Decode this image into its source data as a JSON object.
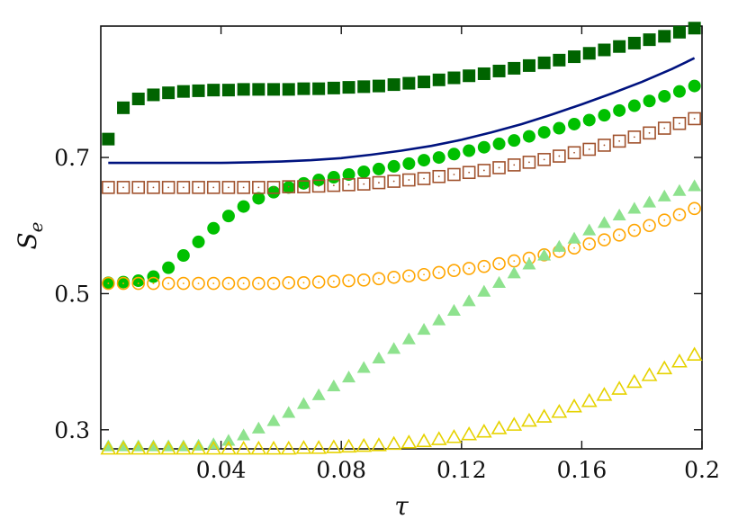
{
  "chart_data": {
    "type": "scatter",
    "title": "",
    "xlabel": "τ",
    "ylabel": "S",
    "ylabel_subscript": "e",
    "xlim": [
      0.0,
      0.2
    ],
    "ylim": [
      0.272,
      0.893
    ],
    "grid": false,
    "legend": "none",
    "x_ticks": [
      {
        "value": 0.04,
        "label": "0.04"
      },
      {
        "value": 0.08,
        "label": "0.08"
      },
      {
        "value": 0.12,
        "label": "0.12"
      },
      {
        "value": 0.16,
        "label": "0.16"
      },
      {
        "value": 0.2,
        "label": "0.2"
      }
    ],
    "y_ticks": [
      {
        "value": 0.3,
        "label": "0.3"
      },
      {
        "value": 0.5,
        "label": "0.5"
      },
      {
        "value": 0.7,
        "label": "0.7"
      }
    ],
    "series": [
      {
        "name": "dark-green-filled-squares",
        "marker": "square-filled",
        "color": "#006400",
        "x": [
          0.0025,
          0.0075,
          0.0125,
          0.0175,
          0.0225,
          0.0275,
          0.0325,
          0.0375,
          0.0425,
          0.0475,
          0.0525,
          0.0575,
          0.0625,
          0.0675,
          0.0725,
          0.0775,
          0.0825,
          0.0875,
          0.0925,
          0.0975,
          0.1025,
          0.1075,
          0.1125,
          0.1175,
          0.1225,
          0.1275,
          0.1325,
          0.1375,
          0.1425,
          0.1475,
          0.1525,
          0.1575,
          0.1625,
          0.1675,
          0.1725,
          0.1775,
          0.1825,
          0.1875,
          0.1925,
          0.1975
        ],
        "y": [
          0.727,
          0.773,
          0.786,
          0.792,
          0.795,
          0.797,
          0.798,
          0.799,
          0.799,
          0.8,
          0.8,
          0.8,
          0.8,
          0.801,
          0.801,
          0.802,
          0.803,
          0.804,
          0.805,
          0.807,
          0.809,
          0.811,
          0.814,
          0.817,
          0.82,
          0.823,
          0.827,
          0.831,
          0.835,
          0.839,
          0.843,
          0.848,
          0.853,
          0.858,
          0.863,
          0.868,
          0.873,
          0.878,
          0.884,
          0.89
        ]
      },
      {
        "name": "navy-line",
        "marker": "line",
        "color": "#00137f",
        "x": [
          0.0025,
          0.01,
          0.02,
          0.03,
          0.04,
          0.05,
          0.06,
          0.07,
          0.08,
          0.09,
          0.1,
          0.11,
          0.12,
          0.13,
          0.14,
          0.15,
          0.16,
          0.17,
          0.18,
          0.19,
          0.1975
        ],
        "y": [
          0.692,
          0.692,
          0.692,
          0.692,
          0.692,
          0.693,
          0.694,
          0.696,
          0.699,
          0.704,
          0.71,
          0.717,
          0.726,
          0.737,
          0.749,
          0.763,
          0.778,
          0.794,
          0.811,
          0.83,
          0.846
        ]
      },
      {
        "name": "green-filled-circles",
        "marker": "circle-filled",
        "color": "#00c000",
        "x": [
          0.0025,
          0.0075,
          0.0125,
          0.0175,
          0.0225,
          0.0275,
          0.0325,
          0.0375,
          0.0425,
          0.0475,
          0.0525,
          0.0575,
          0.0625,
          0.0675,
          0.0725,
          0.0775,
          0.0825,
          0.0875,
          0.0925,
          0.0975,
          0.1025,
          0.1075,
          0.1125,
          0.1175,
          0.1225,
          0.1275,
          0.1325,
          0.1375,
          0.1425,
          0.1475,
          0.1525,
          0.1575,
          0.1625,
          0.1675,
          0.1725,
          0.1775,
          0.1825,
          0.1875,
          0.1925,
          0.1975
        ],
        "y": [
          0.516,
          0.517,
          0.519,
          0.525,
          0.538,
          0.556,
          0.576,
          0.596,
          0.614,
          0.628,
          0.64,
          0.649,
          0.656,
          0.662,
          0.667,
          0.671,
          0.675,
          0.679,
          0.683,
          0.687,
          0.691,
          0.696,
          0.7,
          0.705,
          0.71,
          0.715,
          0.72,
          0.725,
          0.731,
          0.737,
          0.743,
          0.749,
          0.755,
          0.762,
          0.769,
          0.776,
          0.783,
          0.79,
          0.797,
          0.805
        ]
      },
      {
        "name": "brown-open-squares",
        "marker": "square-open",
        "color": "#a0522d",
        "x": [
          0.0025,
          0.0075,
          0.0125,
          0.0175,
          0.0225,
          0.0275,
          0.0325,
          0.0375,
          0.0425,
          0.0475,
          0.0525,
          0.0575,
          0.0625,
          0.0675,
          0.0725,
          0.0775,
          0.0825,
          0.0875,
          0.0925,
          0.0975,
          0.1025,
          0.1075,
          0.1125,
          0.1175,
          0.1225,
          0.1275,
          0.1325,
          0.1375,
          0.1425,
          0.1475,
          0.1525,
          0.1575,
          0.1625,
          0.1675,
          0.1725,
          0.1775,
          0.1825,
          0.1875,
          0.1925,
          0.1975
        ],
        "y": [
          0.656,
          0.656,
          0.656,
          0.656,
          0.656,
          0.656,
          0.656,
          0.656,
          0.656,
          0.656,
          0.656,
          0.656,
          0.657,
          0.657,
          0.658,
          0.659,
          0.66,
          0.661,
          0.663,
          0.665,
          0.667,
          0.669,
          0.672,
          0.675,
          0.678,
          0.681,
          0.685,
          0.689,
          0.693,
          0.697,
          0.702,
          0.707,
          0.712,
          0.718,
          0.724,
          0.73,
          0.736,
          0.743,
          0.75,
          0.757
        ]
      },
      {
        "name": "orange-open-circles",
        "marker": "circle-open",
        "color": "#ffa500",
        "x": [
          0.0025,
          0.0075,
          0.0125,
          0.0175,
          0.0225,
          0.0275,
          0.0325,
          0.0375,
          0.0425,
          0.0475,
          0.0525,
          0.0575,
          0.0625,
          0.0675,
          0.0725,
          0.0775,
          0.0825,
          0.0875,
          0.0925,
          0.0975,
          0.1025,
          0.1075,
          0.1125,
          0.1175,
          0.1225,
          0.1275,
          0.1325,
          0.1375,
          0.1425,
          0.1475,
          0.1525,
          0.1575,
          0.1625,
          0.1675,
          0.1725,
          0.1775,
          0.1825,
          0.1875,
          0.1925,
          0.1975
        ],
        "y": [
          0.515,
          0.515,
          0.515,
          0.515,
          0.515,
          0.515,
          0.515,
          0.515,
          0.515,
          0.515,
          0.515,
          0.515,
          0.516,
          0.516,
          0.517,
          0.518,
          0.519,
          0.52,
          0.522,
          0.524,
          0.526,
          0.528,
          0.531,
          0.534,
          0.537,
          0.54,
          0.544,
          0.548,
          0.552,
          0.557,
          0.562,
          0.567,
          0.573,
          0.579,
          0.586,
          0.593,
          0.6,
          0.608,
          0.616,
          0.625
        ]
      },
      {
        "name": "light-green-filled-triangles",
        "marker": "triangle-filled",
        "color": "#8ee28e",
        "x": [
          0.0025,
          0.0075,
          0.0125,
          0.0175,
          0.0225,
          0.0275,
          0.0325,
          0.0375,
          0.0425,
          0.0475,
          0.0525,
          0.0575,
          0.0625,
          0.0675,
          0.0725,
          0.0775,
          0.0825,
          0.0875,
          0.0925,
          0.0975,
          0.1025,
          0.1075,
          0.1125,
          0.1175,
          0.1225,
          0.1275,
          0.1325,
          0.1375,
          0.1425,
          0.1475,
          0.1525,
          0.1575,
          0.1625,
          0.1675,
          0.1725,
          0.1775,
          0.1825,
          0.1875,
          0.1925,
          0.1975
        ],
        "y": [
          0.276,
          0.276,
          0.276,
          0.276,
          0.276,
          0.276,
          0.277,
          0.279,
          0.284,
          0.292,
          0.302,
          0.313,
          0.325,
          0.338,
          0.351,
          0.364,
          0.377,
          0.391,
          0.405,
          0.419,
          0.433,
          0.447,
          0.461,
          0.475,
          0.489,
          0.503,
          0.516,
          0.53,
          0.543,
          0.556,
          0.569,
          0.581,
          0.593,
          0.604,
          0.615,
          0.625,
          0.634,
          0.643,
          0.651,
          0.658
        ]
      },
      {
        "name": "yellow-open-triangles",
        "marker": "triangle-open",
        "color": "#e6d200",
        "x": [
          0.0025,
          0.0075,
          0.0125,
          0.0175,
          0.0225,
          0.0275,
          0.0325,
          0.0375,
          0.0425,
          0.0475,
          0.0525,
          0.0575,
          0.0625,
          0.0675,
          0.0725,
          0.0775,
          0.0825,
          0.0875,
          0.0925,
          0.0975,
          0.1025,
          0.1075,
          0.1125,
          0.1175,
          0.1225,
          0.1275,
          0.1325,
          0.1375,
          0.1425,
          0.1475,
          0.1525,
          0.1575,
          0.1625,
          0.1675,
          0.1725,
          0.1775,
          0.1825,
          0.1875,
          0.1925,
          0.1975
        ],
        "y": [
          0.272,
          0.272,
          0.272,
          0.272,
          0.272,
          0.272,
          0.272,
          0.272,
          0.272,
          0.272,
          0.272,
          0.272,
          0.272,
          0.273,
          0.273,
          0.274,
          0.275,
          0.276,
          0.277,
          0.279,
          0.281,
          0.283,
          0.286,
          0.289,
          0.293,
          0.297,
          0.302,
          0.307,
          0.313,
          0.319,
          0.326,
          0.334,
          0.342,
          0.351,
          0.36,
          0.37,
          0.38,
          0.39,
          0.4,
          0.41
        ]
      }
    ]
  }
}
